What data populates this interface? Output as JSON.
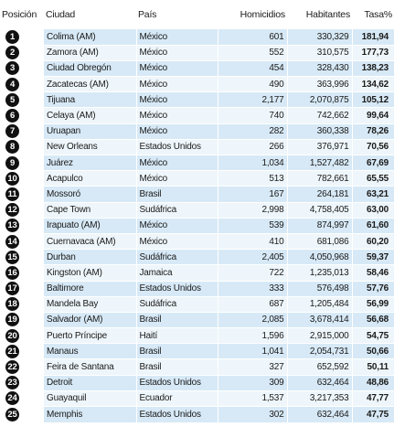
{
  "headers": {
    "rank": "Posición",
    "city": "Ciudad",
    "country": "País",
    "homicides": "Homicidios",
    "population": "Habitantes",
    "rate": "Tasa%"
  },
  "rows": [
    {
      "rank": "1",
      "city": "Colima (AM)",
      "country": "México",
      "homicides": "601",
      "population": "330,329",
      "rate": "181,94"
    },
    {
      "rank": "2",
      "city": "Zamora (AM)",
      "country": "México",
      "homicides": "552",
      "population": "310,575",
      "rate": "177,73"
    },
    {
      "rank": "3",
      "city": "Ciudad Obregón",
      "country": "México",
      "homicides": "454",
      "population": "328,430",
      "rate": "138,23"
    },
    {
      "rank": "4",
      "city": "Zacatecas (AM)",
      "country": "México",
      "homicides": "490",
      "population": "363,996",
      "rate": "134,62"
    },
    {
      "rank": "5",
      "city": "Tijuana",
      "country": "México",
      "homicides": "2,177",
      "population": "2,070,875",
      "rate": "105,12"
    },
    {
      "rank": "6",
      "city": "Celaya (AM)",
      "country": "México",
      "homicides": "740",
      "population": "742,662",
      "rate": "99,64"
    },
    {
      "rank": "7",
      "city": "Uruapan",
      "country": "México",
      "homicides": "282",
      "population": "360,338",
      "rate": "78,26"
    },
    {
      "rank": "8",
      "city": "New Orleans",
      "country": "Estados Unidos",
      "homicides": "266",
      "population": "376,971",
      "rate": "70,56"
    },
    {
      "rank": "9",
      "city": "Juárez",
      "country": "México",
      "homicides": "1,034",
      "population": "1,527,482",
      "rate": "67,69"
    },
    {
      "rank": "10",
      "city": "Acapulco",
      "country": "México",
      "homicides": "513",
      "population": "782,661",
      "rate": "65,55"
    },
    {
      "rank": "11",
      "city": "Mossoró",
      "country": "Brasil",
      "homicides": "167",
      "population": "264,181",
      "rate": "63,21"
    },
    {
      "rank": "12",
      "city": "Cape Town",
      "country": "Sudáfrica",
      "homicides": "2,998",
      "population": "4,758,405",
      "rate": "63,00"
    },
    {
      "rank": "13",
      "city": "Irapuato (AM)",
      "country": "México",
      "homicides": "539",
      "population": "874,997",
      "rate": "61,60"
    },
    {
      "rank": "14",
      "city": "Cuernavaca (AM)",
      "country": "México",
      "homicides": "410",
      "population": "681,086",
      "rate": "60,20"
    },
    {
      "rank": "15",
      "city": "Durban",
      "country": "Sudáfrica",
      "homicides": "2,405",
      "population": "4,050,968",
      "rate": "59,37"
    },
    {
      "rank": "16",
      "city": "Kingston (AM)",
      "country": "Jamaica",
      "homicides": "722",
      "population": "1,235,013",
      "rate": "58,46"
    },
    {
      "rank": "17",
      "city": "Baltimore",
      "country": "Estados Unidos",
      "homicides": "333",
      "population": "576,498",
      "rate": "57,76"
    },
    {
      "rank": "18",
      "city": "Mandela Bay",
      "country": "Sudáfrica",
      "homicides": "687",
      "population": "1,205,484",
      "rate": "56,99"
    },
    {
      "rank": "19",
      "city": "Salvador (AM)",
      "country": "Brasil",
      "homicides": "2,085",
      "population": "3,678,414",
      "rate": "56,68"
    },
    {
      "rank": "20",
      "city": "Puerto Príncipe",
      "country": "Haití",
      "homicides": "1,596",
      "population": "2,915,000",
      "rate": "54,75"
    },
    {
      "rank": "21",
      "city": "Manaus",
      "country": "Brasil",
      "homicides": "1,041",
      "population": "2,054,731",
      "rate": "50,66"
    },
    {
      "rank": "22",
      "city": "Feira de Santana",
      "country": "Brasil",
      "homicides": "327",
      "population": "652,592",
      "rate": "50,11"
    },
    {
      "rank": "23",
      "city": "Detroit",
      "country": "Estados Unidos",
      "homicides": "309",
      "population": "632,464",
      "rate": "48,86"
    },
    {
      "rank": "24",
      "city": "Guayaquil",
      "country": "Ecuador",
      "homicides": "1,537",
      "population": "3,217,353",
      "rate": "47,77"
    },
    {
      "rank": "25",
      "city": "Memphis",
      "country": "Estados Unidos",
      "homicides": "302",
      "population": "632,464",
      "rate": "47,75"
    }
  ],
  "colors": {
    "row_shade_a": "#d7e9f6",
    "row_shade_b": "#eef6fb",
    "badge": "#111111"
  }
}
